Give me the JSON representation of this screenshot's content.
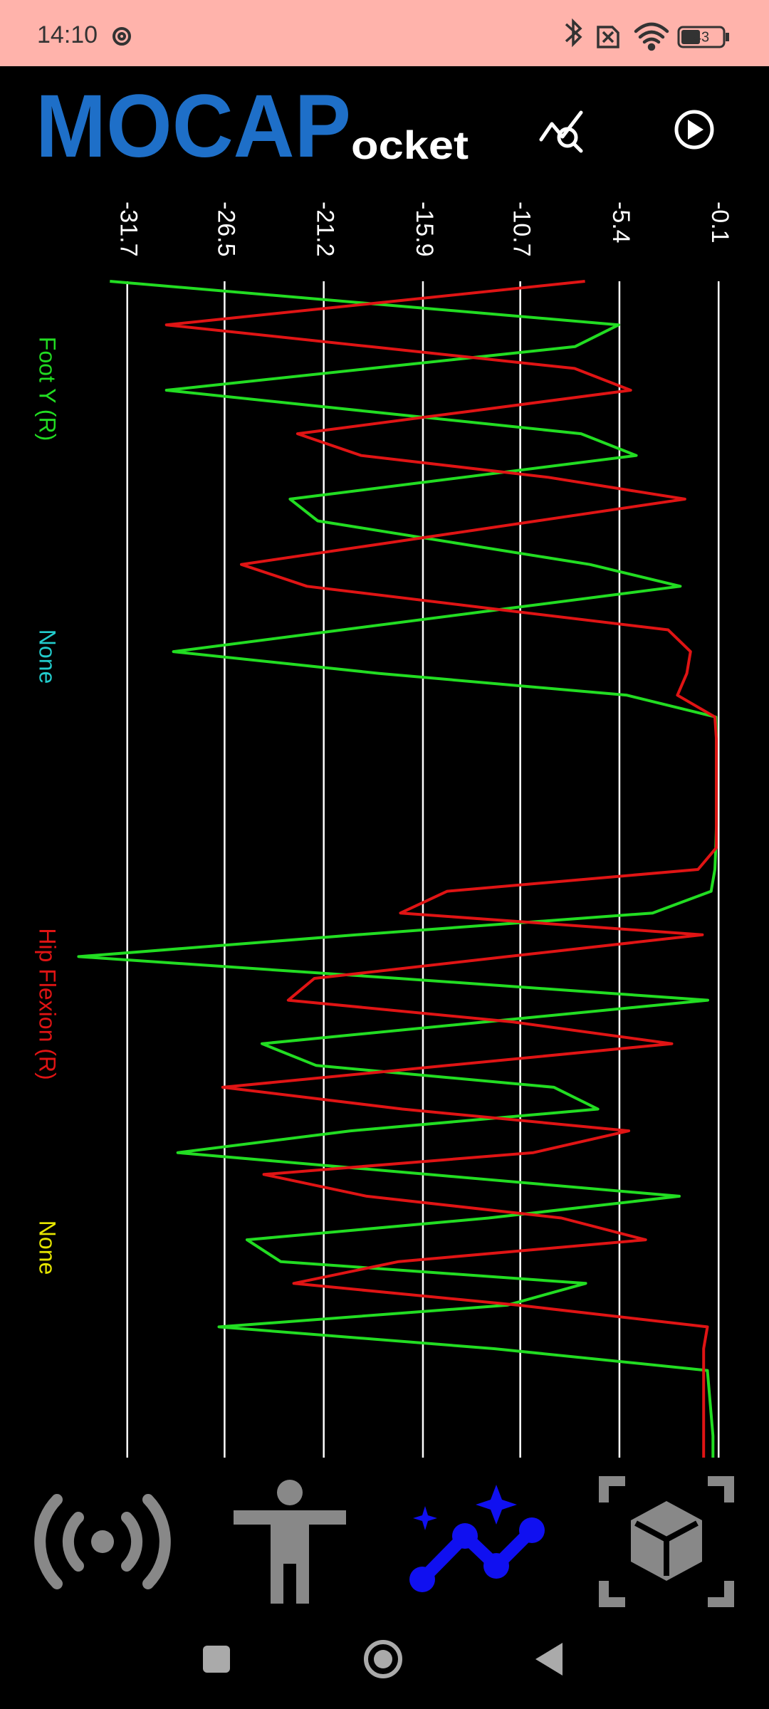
{
  "status_bar": {
    "time": "14:10",
    "battery": "43"
  },
  "header": {
    "logo_main": "MOCAP",
    "logo_rest": "ocket"
  },
  "chart_data": {
    "type": "line",
    "orientation": "vertical",
    "xlim": [
      -35,
      0.5
    ],
    "xticks": [
      -31.7,
      -26.5,
      -21.2,
      -15.9,
      -10.7,
      -5.4,
      -0.1
    ],
    "grid": true,
    "series": [
      {
        "name": "Foot Y (R)",
        "color": "#22dd22",
        "values": [
          -32.63,
          -19.04,
          -5.44,
          -7.78,
          -18.7,
          -29.61,
          -18.53,
          -7.45,
          -4.5,
          -13.75,
          -23.0,
          -21.52,
          -14.25,
          -6.98,
          -2.15,
          -11.18,
          -20.2,
          -29.23,
          -18.23,
          -5.0,
          -0.25,
          -0.22,
          -0.22,
          -0.22,
          -0.22,
          -0.22,
          -0.25,
          -0.3,
          -0.5,
          -3.63,
          -19.45,
          -34.3,
          -17.2,
          -0.68,
          -12.58,
          -24.5,
          -21.6,
          -8.9,
          -6.55,
          -19.77,
          -29.0,
          -15.6,
          -2.2,
          -12.4,
          -25.3,
          -23.5,
          -7.2,
          -11.4,
          -26.8,
          -12.1,
          -0.7,
          -0.6,
          -0.5,
          -0.4,
          -0.4
        ]
      },
      {
        "name": "Hip Flexion (R)",
        "color": "#e01414",
        "values": [
          -7.24,
          -18.4,
          -29.61,
          -18.7,
          -7.8,
          -4.8,
          -13.7,
          -22.6,
          -19.2,
          -9.2,
          -1.9,
          -9.8,
          -17.7,
          -25.6,
          -22.1,
          -12.5,
          -2.8,
          -1.6,
          -1.8,
          -2.3,
          -0.3,
          -0.22,
          -0.22,
          -0.22,
          -0.22,
          -0.22,
          -0.22,
          -1.2,
          -14.6,
          -17.1,
          -0.97,
          -11.4,
          -21.7,
          -23.1,
          -11.1,
          -2.6,
          -14.6,
          -26.6,
          -17.0,
          -4.9,
          -10.0,
          -24.4,
          -18.9,
          -8.5,
          -4.0,
          -17.2,
          -22.8,
          -10.8,
          -0.7,
          -0.9,
          -0.9,
          -0.9,
          -0.9,
          -0.9,
          -0.9
        ]
      }
    ],
    "empty_channels": [
      {
        "name": "None",
        "color": "#22cccc"
      },
      {
        "name": "None",
        "color": "#e6e600"
      }
    ]
  }
}
